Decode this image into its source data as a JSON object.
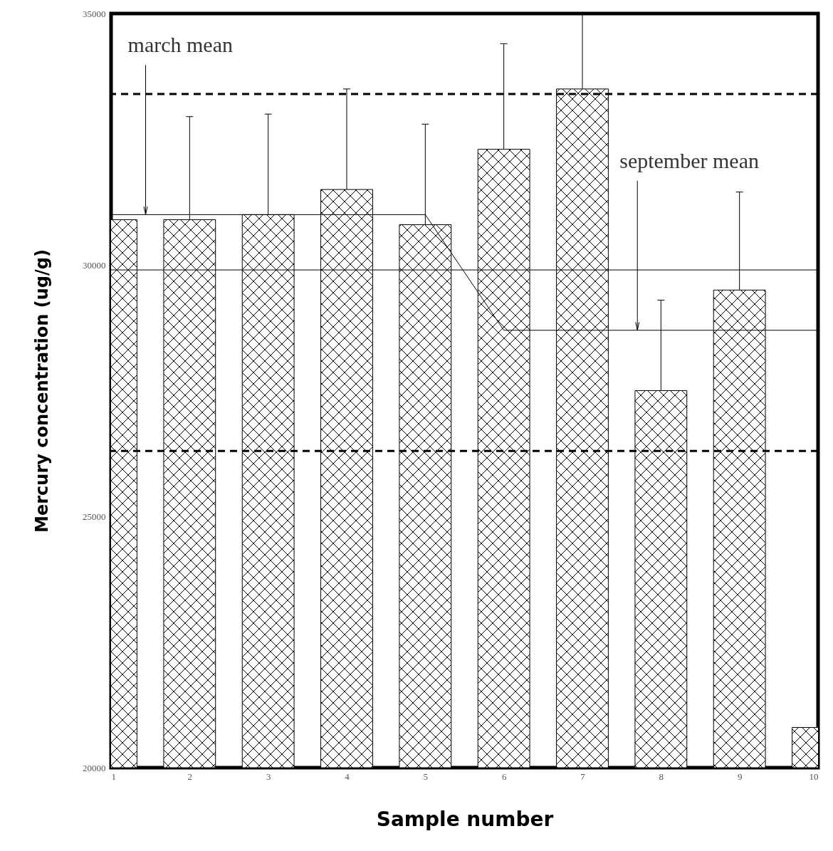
{
  "chart_data": {
    "type": "bar",
    "xlabel": "Sample number",
    "ylabel": "Mercury concentration (ug/g)",
    "x": [
      1,
      2,
      3,
      4,
      5,
      6,
      7,
      8,
      9,
      10
    ],
    "series": [
      {
        "color": "#000000",
        "values": [
          30900,
          30900,
          31000,
          31500,
          30800,
          32300,
          33500,
          27500,
          29500,
          20800
        ],
        "errors": [
          null,
          [
            30900,
            32950
          ],
          [
            31000,
            33000
          ],
          [
            31500,
            33500
          ],
          [
            30800,
            32800
          ],
          [
            32300,
            34400
          ],
          [
            33500,
            35000
          ],
          [
            27500,
            29300
          ],
          [
            29500,
            31450
          ],
          null
        ]
      },
      {
        "type": "line",
        "color": "#000000",
        "x": [
          1,
          5,
          6,
          10
        ],
        "values": [
          31000,
          31000,
          28700,
          28700
        ]
      }
    ],
    "xlim": [
      1,
      10
    ],
    "xticks": [
      1,
      2,
      3,
      4,
      5,
      6,
      7,
      8,
      9,
      10
    ],
    "ylim": [
      20000,
      35000
    ],
    "yticks": [
      20000,
      25000,
      30000,
      35000
    ],
    "ref_lines": [
      {
        "axis": "y",
        "value": 33400,
        "line_style": "dashed",
        "color": "#000000"
      },
      {
        "axis": "y",
        "value": 26300,
        "line_style": "dashed",
        "color": "#000000"
      },
      {
        "axis": "y",
        "value": 29900,
        "line_style": "solid",
        "color": "#000000"
      }
    ],
    "annotations": [
      {
        "text": "march mean",
        "x": 1.44,
        "y": 31000
      },
      {
        "text": "september mean",
        "x": 7.7,
        "y": 28700
      }
    ],
    "grid": false
  }
}
